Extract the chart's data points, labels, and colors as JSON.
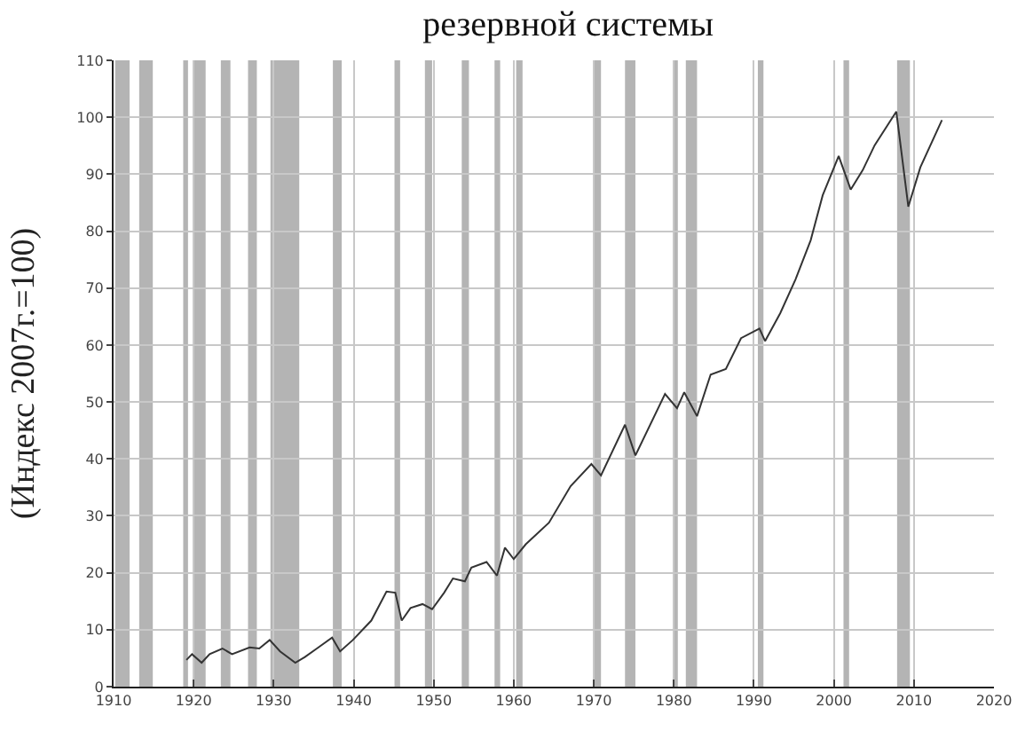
{
  "chart_data": {
    "type": "line",
    "title": "резервной системы",
    "ylabel": "(Индекс 2007г.=100)",
    "x": [
      1919.1,
      1919.8,
      1921,
      1922,
      1923.6,
      1924.8,
      1927,
      1928.2,
      1929.5,
      1930.8,
      1932.7,
      1933.9,
      1935.4,
      1937.3,
      1938.3,
      1939.9,
      1942.2,
      1944.1,
      1945.2,
      1946,
      1947.1,
      1948.6,
      1949.8,
      1951.3,
      1952.4,
      1953.9,
      1954.7,
      1956.6,
      1957.9,
      1958.9,
      1960,
      1961.5,
      1964.4,
      1967.1,
      1969.7,
      1970.9,
      1973.9,
      1975.2,
      1978.9,
      1980.4,
      1981.3,
      1982.9,
      1984.6,
      1986.5,
      1988.4,
      1990.7,
      1991.4,
      1993.3,
      1995.2,
      1997.1,
      1998.6,
      2000.6,
      2002.1,
      2003.6,
      2005.1,
      2007.8,
      2009.3,
      2010.8,
      2013.5
    ],
    "series": [
      {
        "color": "#333333",
        "values": [
          4.7,
          5.7,
          4.2,
          5.7,
          6.7,
          5.7,
          6.9,
          6.7,
          8.2,
          6.2,
          4.2,
          5.2,
          6.7,
          8.6,
          6.2,
          8.2,
          11.6,
          16.7,
          16.5,
          11.6,
          13.8,
          14.5,
          13.6,
          16.5,
          19,
          18.5,
          20.9,
          21.9,
          19.5,
          24.4,
          22.4,
          25,
          28.8,
          35.2,
          39.1,
          37.1,
          46,
          40.6,
          51.4,
          48.9,
          51.7,
          47.5,
          54.8,
          55.8,
          61.2,
          62.9,
          60.7,
          65.6,
          71.5,
          78.4,
          86.3,
          93.2,
          87.3,
          90.7,
          95.1,
          101,
          84.3,
          91.2,
          99.5
        ]
      }
    ],
    "xlim": [
      1910,
      2020
    ],
    "xticks": [
      1910,
      1920,
      1930,
      1940,
      1950,
      1960,
      1970,
      1980,
      1990,
      2000,
      2010,
      2020
    ],
    "ylim": [
      0,
      110
    ],
    "yticks": [
      0,
      10,
      20,
      30,
      40,
      50,
      60,
      70,
      80,
      90,
      100,
      110
    ],
    "grid": true,
    "marker": "none",
    "line_style": "solid",
    "bands": [
      {
        "axis": "x",
        "from": 1910.2,
        "to": 1912,
        "color": "#b4b4b4"
      },
      {
        "axis": "x",
        "from": 1913.2,
        "to": 1914.9,
        "color": "#b4b4b4"
      },
      {
        "axis": "x",
        "from": 1918.7,
        "to": 1919.3,
        "color": "#b4b4b4"
      },
      {
        "axis": "x",
        "from": 1920,
        "to": 1921.5,
        "color": "#b4b4b4"
      },
      {
        "axis": "x",
        "from": 1923.4,
        "to": 1924.6,
        "color": "#b4b4b4"
      },
      {
        "axis": "x",
        "from": 1926.8,
        "to": 1927.9,
        "color": "#b4b4b4"
      },
      {
        "axis": "x",
        "from": 1929.6,
        "to": 1933.2,
        "color": "#b4b4b4"
      },
      {
        "axis": "x",
        "from": 1937.4,
        "to": 1938.5,
        "color": "#b4b4b4"
      },
      {
        "axis": "x",
        "from": 1945.1,
        "to": 1945.8,
        "color": "#b4b4b4"
      },
      {
        "axis": "x",
        "from": 1948.9,
        "to": 1949.8,
        "color": "#b4b4b4"
      },
      {
        "axis": "x",
        "from": 1953.5,
        "to": 1954.4,
        "color": "#b4b4b4"
      },
      {
        "axis": "x",
        "from": 1957.6,
        "to": 1958.3,
        "color": "#b4b4b4"
      },
      {
        "axis": "x",
        "from": 1960.3,
        "to": 1961.1,
        "color": "#b4b4b4"
      },
      {
        "axis": "x",
        "from": 1969.9,
        "to": 1970.9,
        "color": "#b4b4b4"
      },
      {
        "axis": "x",
        "from": 1973.9,
        "to": 1975.2,
        "color": "#b4b4b4"
      },
      {
        "axis": "x",
        "from": 1980,
        "to": 1980.5,
        "color": "#b4b4b4"
      },
      {
        "axis": "x",
        "from": 1981.5,
        "to": 1982.9,
        "color": "#b4b4b4"
      },
      {
        "axis": "x",
        "from": 1990.5,
        "to": 1991.2,
        "color": "#b4b4b4"
      },
      {
        "axis": "x",
        "from": 2001.2,
        "to": 2001.9,
        "color": "#b4b4b4"
      },
      {
        "axis": "x",
        "from": 2007.9,
        "to": 2009.5,
        "color": "#b4b4b4"
      }
    ]
  }
}
